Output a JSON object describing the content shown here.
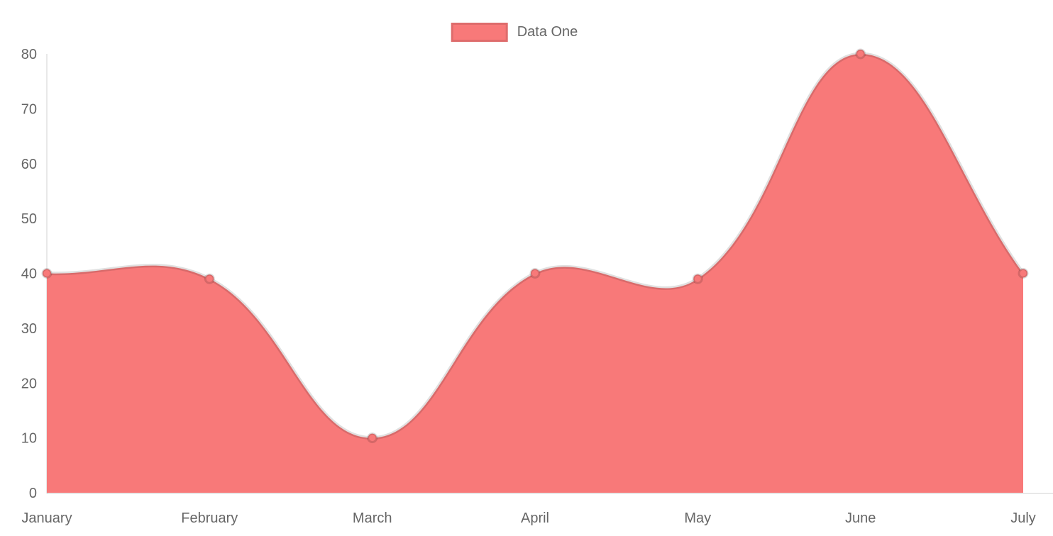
{
  "chart_data": {
    "type": "area",
    "title": "",
    "xlabel": "",
    "ylabel": "",
    "categories": [
      "January",
      "February",
      "March",
      "April",
      "May",
      "June",
      "July"
    ],
    "series": [
      {
        "name": "Data One",
        "values": [
          40,
          39,
          10,
          40,
          39,
          80,
          40
        ]
      }
    ],
    "ylim": [
      0,
      80
    ],
    "y_ticks": [
      0,
      10,
      20,
      30,
      40,
      50,
      60,
      70,
      80
    ],
    "grid": false,
    "legend_position": "top-center",
    "bezier_tension": 0.4,
    "colors": {
      "fill": "#f87979",
      "line": "rgba(0,0,0,0.12)",
      "point_fill": "#f87979",
      "point_border": "rgba(0,0,0,0.14)",
      "axis_line": "rgba(0,0,0,0.09)",
      "tick_text": "#666666"
    }
  }
}
